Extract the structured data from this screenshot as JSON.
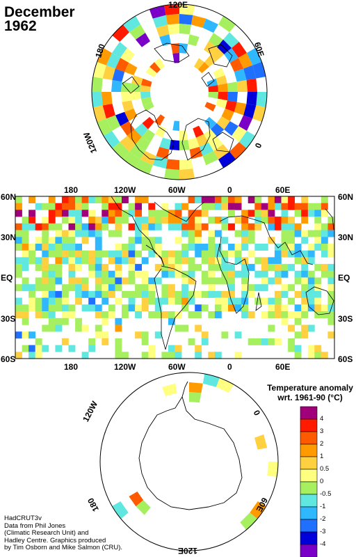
{
  "header": {
    "title_line1": "December",
    "title_line2": "1962"
  },
  "north_polar": {
    "labels": [
      "120E",
      "60E",
      "0",
      "120W",
      "180"
    ]
  },
  "world_map": {
    "top_lon_labels": [
      "180",
      "120W",
      "60W",
      "0",
      "60E"
    ],
    "bottom_lon_labels": [
      "180",
      "120W",
      "60W",
      "0",
      "60E"
    ],
    "left_lat_labels": [
      "60N",
      "30N",
      "EQ",
      "30S",
      "60S"
    ],
    "right_lat_labels": [
      "60N",
      "30N",
      "EQ",
      "30S",
      "60S"
    ]
  },
  "south_polar": {
    "labels": [
      "120W",
      "0",
      "180",
      "60E",
      "120E"
    ]
  },
  "legend": {
    "title_line1": "Temperature anomaly",
    "title_line2": "wrt. 1961-90  (°C)",
    "colors": [
      "#a0007a",
      "#ff1a00",
      "#ff5a00",
      "#ff9a00",
      "#ffd040",
      "#ffff80",
      "#a6f060",
      "#60e8e0",
      "#30b8ff",
      "#2070ff",
      "#0000d8",
      "#7a00c8"
    ],
    "ticks": [
      "4",
      "3",
      "2",
      "1",
      "0.5",
      "0",
      "-0.5",
      "-1",
      "-2",
      "-3",
      "-4"
    ]
  },
  "credit": {
    "lines": [
      "HadCRUT3v",
      "Data from Phil Jones",
      "(Climatic Research Unit) and",
      "Hadley Centre.  Graphics produced",
      "by Tim Osborn and Mike Salmon (CRU)."
    ]
  }
}
